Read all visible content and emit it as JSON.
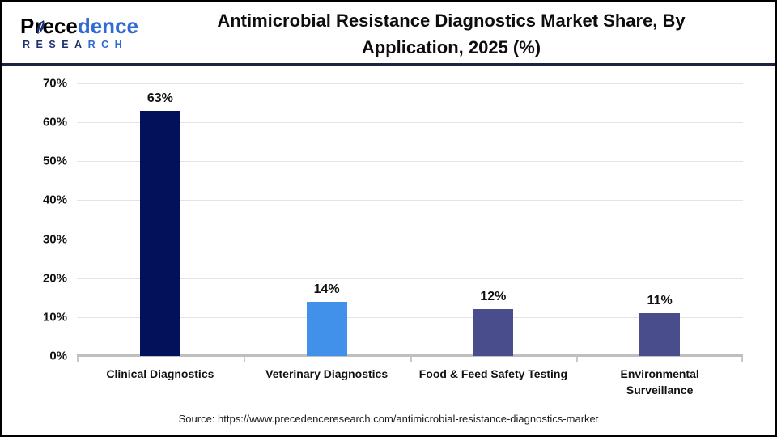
{
  "header": {
    "logo": {
      "brand_part1": "Prece",
      "brand_part2": "dence",
      "research_part1": "RESEA",
      "research_part2": "RCH"
    },
    "title_line1": "Antimicrobial Resistance Diagnostics Market Share, By",
    "title_line2": "Application, 2025 (%)"
  },
  "chart_data": {
    "type": "bar",
    "title": "Antimicrobial Resistance Diagnostics Market Share, By Application, 2025 (%)",
    "categories": [
      "Clinical Diagnostics",
      "Veterinary Diagnostics",
      "Food & Feed Safety Testing",
      "Environmental Surveillance"
    ],
    "category_label_lines": [
      [
        "Clinical Diagnostics"
      ],
      [
        "Veterinary Diagnostics"
      ],
      [
        "Food & Feed Safety Testing"
      ],
      [
        "Environmental",
        "Surveillance"
      ]
    ],
    "values": [
      63,
      14,
      12,
      11
    ],
    "value_labels": [
      "63%",
      "14%",
      "12%",
      "11%"
    ],
    "bar_colors": [
      "#03105a",
      "#4191eb",
      "#494d8b",
      "#494d8b"
    ],
    "xlabel": "",
    "ylabel": "",
    "ylim": [
      0,
      70
    ],
    "ytick_values": [
      0,
      10,
      20,
      30,
      40,
      50,
      60,
      70
    ],
    "ytick_labels": [
      "0%",
      "10%",
      "20%",
      "30%",
      "40%",
      "50%",
      "60%",
      "70%"
    ],
    "grid": true,
    "legend": false
  },
  "footer": {
    "source": "Source: https://www.precedenceresearch.com/antimicrobial-resistance-diagnostics-market"
  },
  "colors": {
    "divider_navy": "#1b2444",
    "gridline": "#e4e4e4",
    "axis_gray": "#bfbfbf",
    "logo_navy": "#20306e",
    "logo_blue": "#2f6bd3",
    "bar_navy": "#03105a",
    "bar_blue": "#4191eb",
    "bar_slate": "#494d8b"
  }
}
